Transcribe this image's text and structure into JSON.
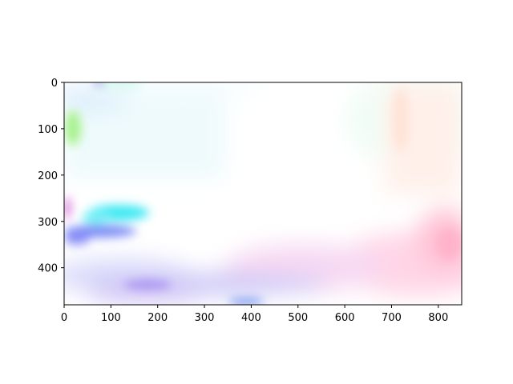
{
  "chart_data": {
    "type": "heatmap",
    "title": "",
    "xlabel": "",
    "ylabel": "",
    "xlim": [
      0,
      850
    ],
    "ylim": [
      480,
      0
    ],
    "y_inverted": true,
    "x_ticks": [
      0,
      100,
      200,
      300,
      400,
      500,
      600,
      700,
      800
    ],
    "y_ticks": [
      0,
      100,
      200,
      300,
      400
    ],
    "grid": false,
    "legend": "none",
    "image_description": "optical-flow color visualization (pastel hues on white)",
    "dominant_regions": [
      {
        "x": [
          0,
          40
        ],
        "y": [
          60,
          140
        ],
        "color": "#a6f28c"
      },
      {
        "x": [
          100,
          290
        ],
        "y": [
          250,
          310
        ],
        "color": "#33e6f2"
      },
      {
        "x": [
          0,
          280
        ],
        "y": [
          300,
          350
        ],
        "color": "#6f7ff5"
      },
      {
        "x": [
          30,
          520
        ],
        "y": [
          410,
          470
        ],
        "color": "#9a7ef0"
      },
      {
        "x": [
          420,
          850
        ],
        "y": [
          290,
          420
        ],
        "color": "#ff9fc6"
      },
      {
        "x": [
          640,
          850
        ],
        "y": [
          0,
          240
        ],
        "color": "#ffe6d8"
      }
    ]
  }
}
